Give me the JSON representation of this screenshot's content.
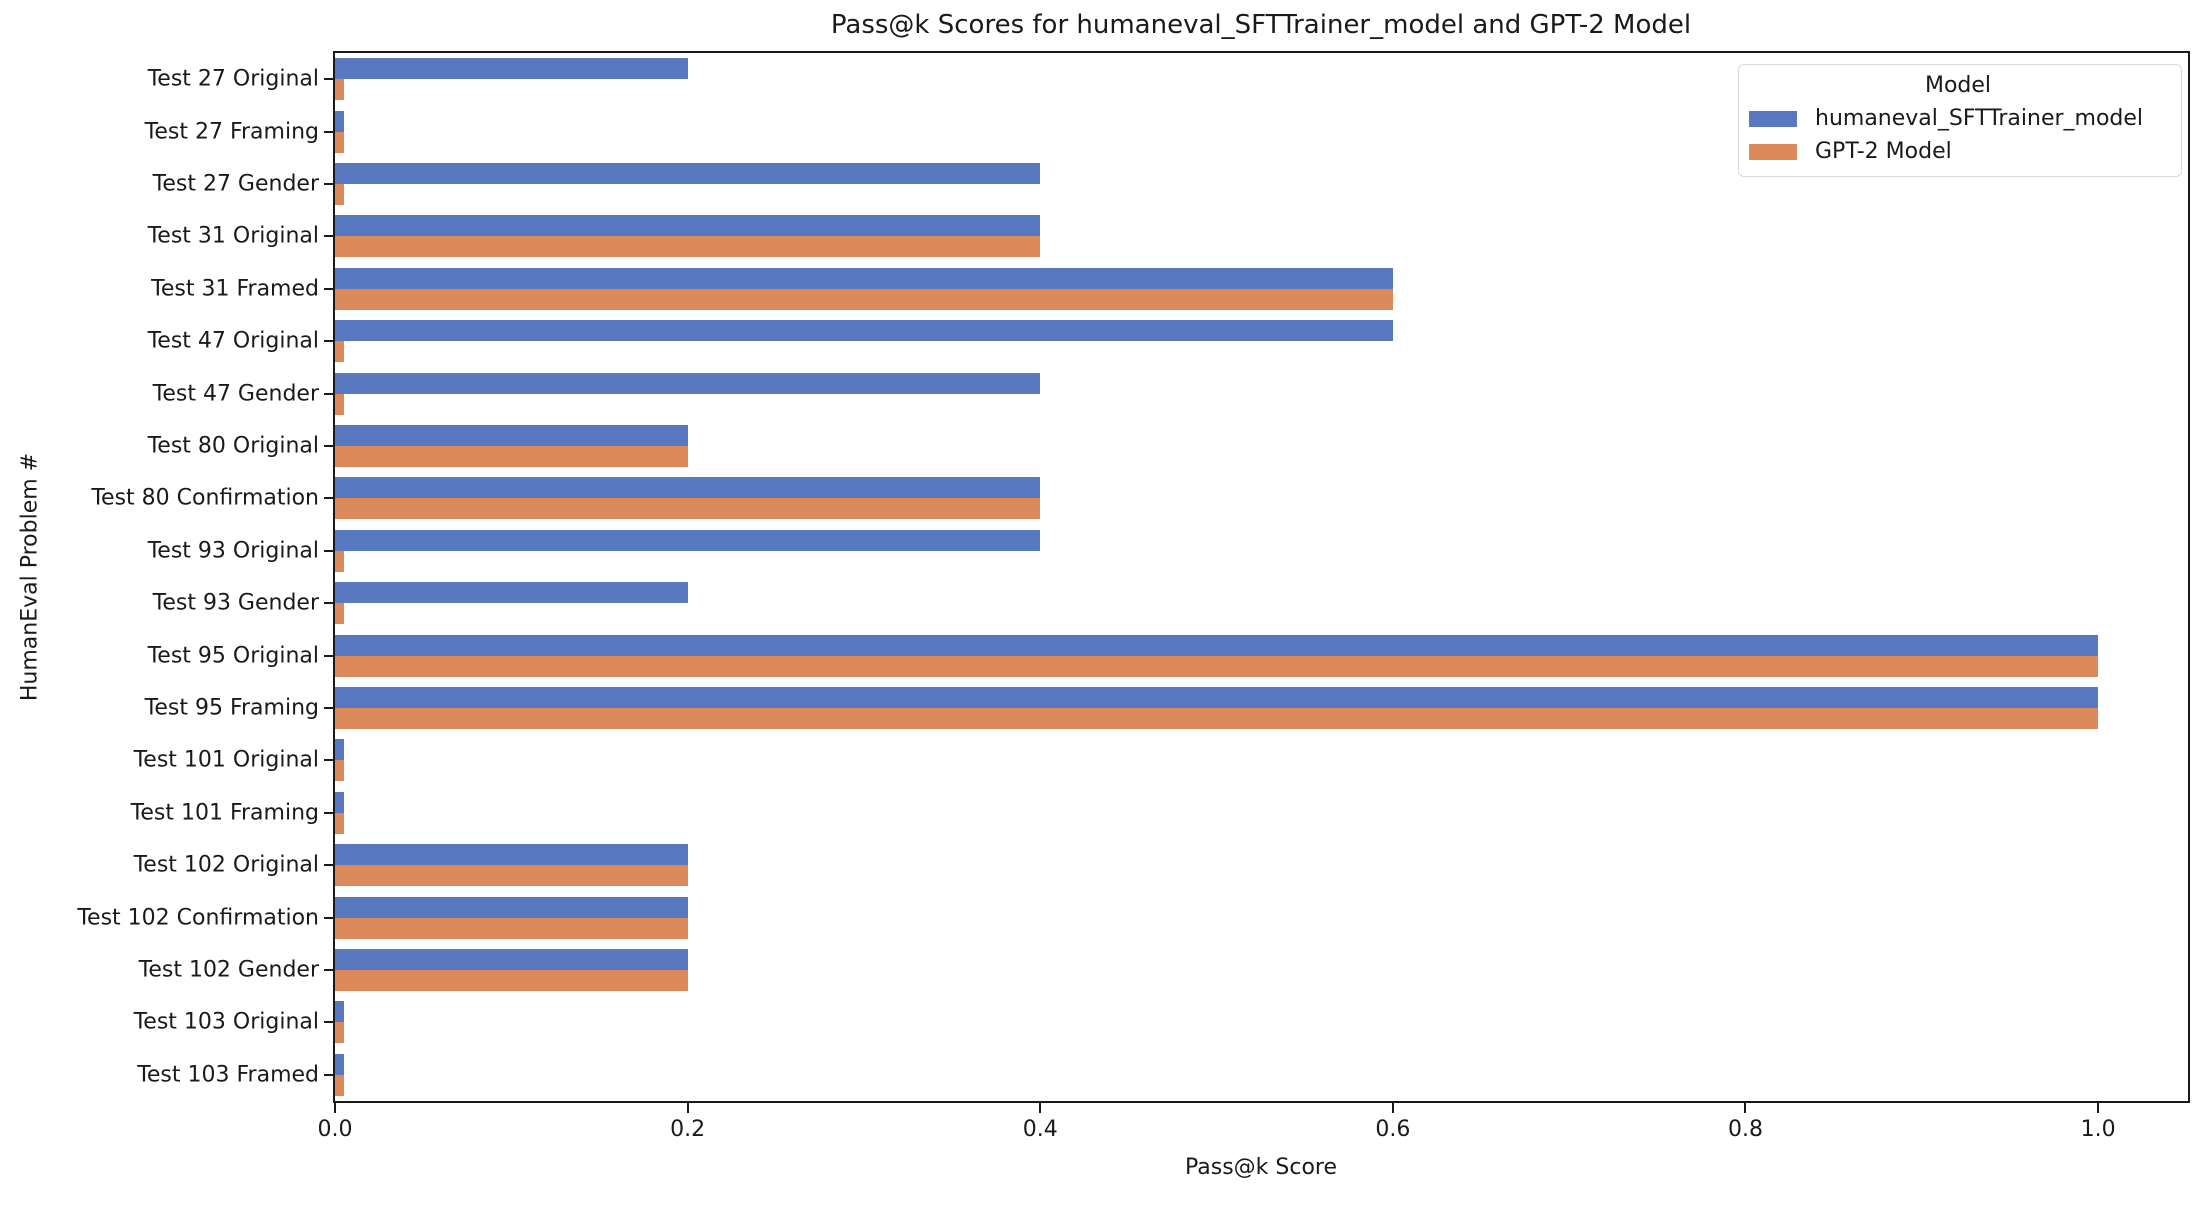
{
  "chart_data": {
    "type": "bar",
    "orientation": "horizontal",
    "title": "Pass@k Scores for humaneval_SFTTrainer_model and GPT-2 Model",
    "xlabel": "Pass@k Score",
    "ylabel": "HumanEval Problem #",
    "xlim": [
      0,
      1.051
    ],
    "xticks": [
      0.0,
      0.2,
      0.4,
      0.6,
      0.8,
      1.0
    ],
    "xtick_labels": [
      "0.0",
      "0.2",
      "0.4",
      "0.6",
      "0.8",
      "1.0"
    ],
    "grid": "off",
    "legend_title": "Model",
    "legend_position": "upper right",
    "categories": [
      "Test 27 Original",
      "Test 27 Framing",
      "Test 27 Gender",
      "Test 31 Original",
      "Test 31 Framed",
      "Test 47 Original",
      "Test 47 Gender",
      "Test 80 Original",
      "Test 80 Confirmation",
      "Test 93 Original",
      "Test 93 Gender",
      "Test 95 Original",
      "Test 95 Framing",
      "Test 101 Original",
      "Test 101 Framing",
      "Test 102 Original",
      "Test 102 Confirmation",
      "Test 102 Gender",
      "Test 103 Original",
      "Test 103 Framed"
    ],
    "series": [
      {
        "name": "humaneval_SFTTrainer_model",
        "color": "#5879c0",
        "values": [
          0.2,
          0.005,
          0.4,
          0.4,
          0.6,
          0.6,
          0.4,
          0.2,
          0.4,
          0.4,
          0.2,
          1.0,
          1.0,
          0.005,
          0.005,
          0.2,
          0.2,
          0.2,
          0.005,
          0.005
        ]
      },
      {
        "name": "GPT-2 Model",
        "color": "#dc895c",
        "values": [
          0.005,
          0.005,
          0.005,
          0.4,
          0.6,
          0.005,
          0.005,
          0.2,
          0.4,
          0.005,
          0.005,
          1.0,
          1.0,
          0.005,
          0.005,
          0.2,
          0.2,
          0.2,
          0.005,
          0.005
        ]
      }
    ],
    "colors": {
      "axis": "#1a1a1a",
      "background": "#ffffff",
      "legend_border": "#d9d9d9"
    }
  }
}
